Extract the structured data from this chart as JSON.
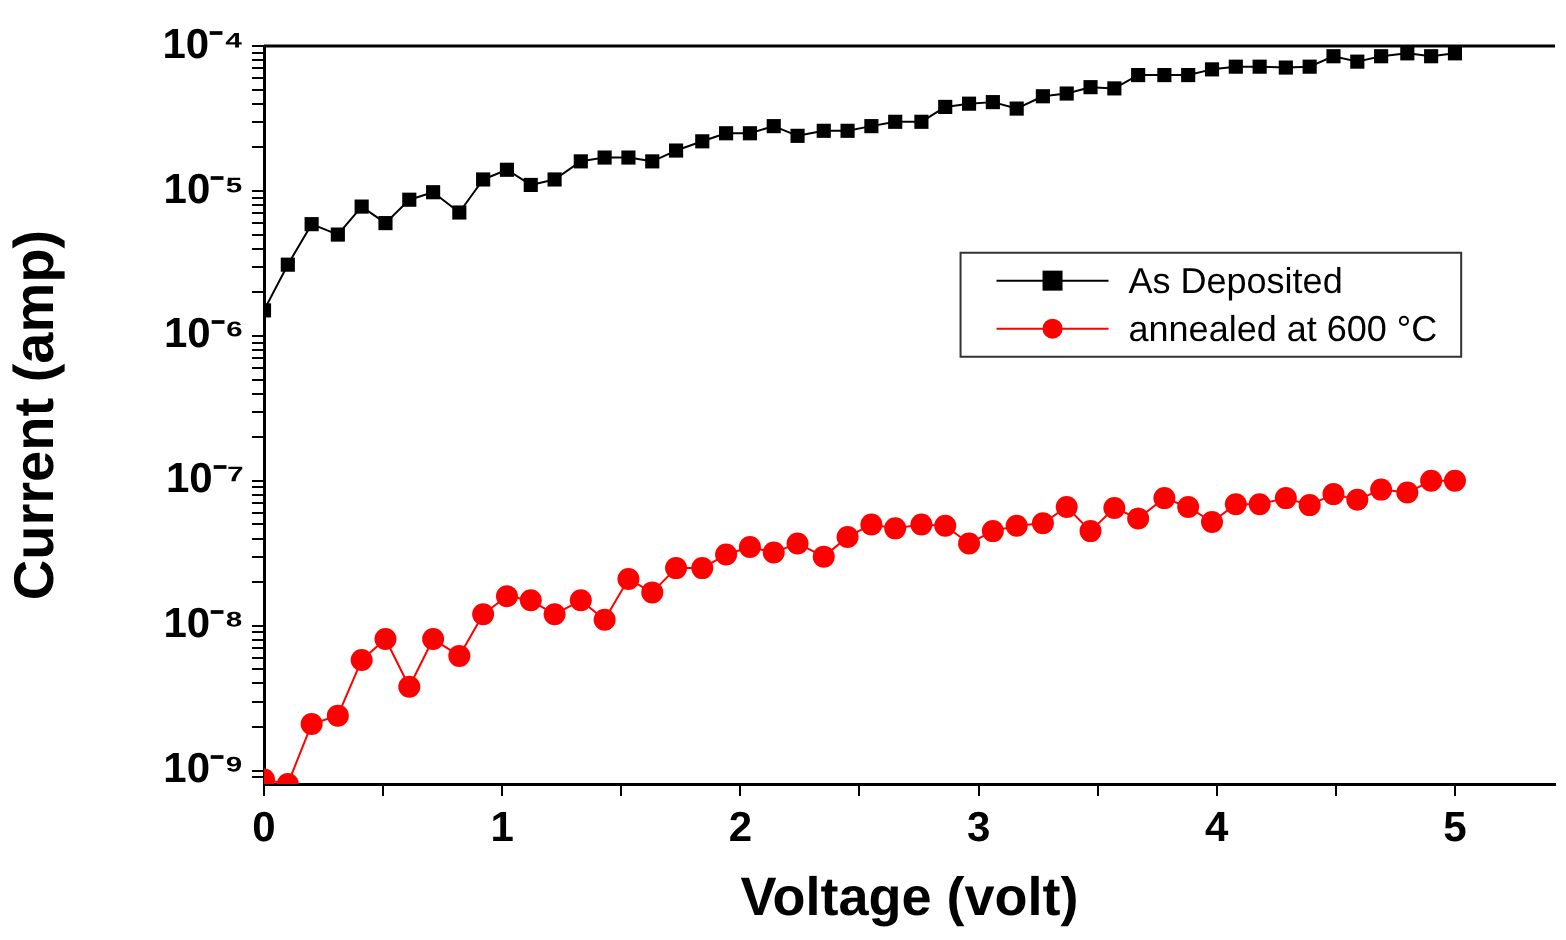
{
  "chart_data": {
    "type": "line",
    "xlabel": "Voltage (volt)",
    "ylabel": "Current (amp)",
    "log": "y",
    "legend": "right",
    "x": [
      0,
      0.1,
      0.2,
      0.31,
      0.41,
      0.51,
      0.61,
      0.71,
      0.82,
      0.92,
      1.02,
      1.12,
      1.22,
      1.33,
      1.43,
      1.53,
      1.63,
      1.73,
      1.84,
      1.94,
      2.04,
      2.14,
      2.24,
      2.35,
      2.45,
      2.55,
      2.65,
      2.76,
      2.86,
      2.96,
      3.06,
      3.16,
      3.27,
      3.37,
      3.47,
      3.57,
      3.67,
      3.78,
      3.88,
      3.98,
      4.08,
      4.18,
      4.29,
      4.39,
      4.49,
      4.59,
      4.69,
      4.8,
      4.9,
      5
    ],
    "series": [
      {
        "name": "As Deposited",
        "color": "#000000",
        "marker": "square",
        "values": [
          1.5e-06,
          3.1e-06,
          5.9e-06,
          5e-06,
          7.8e-06,
          6e-06,
          8.7e-06,
          9.8e-06,
          7.1e-06,
          1.2e-05,
          1.4e-05,
          1.1e-05,
          1.2e-05,
          1.6e-05,
          1.7e-05,
          1.7e-05,
          1.6e-05,
          1.9e-05,
          2.2e-05,
          2.5e-05,
          2.5e-05,
          2.8e-05,
          2.4e-05,
          2.6e-05,
          2.6e-05,
          2.8e-05,
          3e-05,
          3e-05,
          3.8e-05,
          4e-05,
          4.1e-05,
          3.7e-05,
          4.5e-05,
          4.7e-05,
          5.2e-05,
          5.1e-05,
          6.3e-05,
          6.3e-05,
          6.3e-05,
          6.9e-05,
          7.2e-05,
          7.2e-05,
          7.1e-05,
          7.2e-05,
          8.5e-05,
          7.8e-05,
          8.5e-05,
          8.9e-05,
          8.5e-05,
          8.9e-05
        ]
      },
      {
        "name": "annealed at 600 °C",
        "color": "#ff0000",
        "marker": "circle",
        "values": [
          8.7e-10,
          8.1e-10,
          2.1e-09,
          2.4e-09,
          5.8e-09,
          8.1e-09,
          3.8e-09,
          8.1e-09,
          6.2e-09,
          1.2e-08,
          1.6e-08,
          1.5e-08,
          1.2e-08,
          1.5e-08,
          1.1e-08,
          2.1e-08,
          1.7e-08,
          2.5e-08,
          2.5e-08,
          3.1e-08,
          3.5e-08,
          3.2e-08,
          3.7e-08,
          3e-08,
          4.1e-08,
          5e-08,
          4.7e-08,
          5e-08,
          4.9e-08,
          3.7e-08,
          4.5e-08,
          4.9e-08,
          5.1e-08,
          6.6e-08,
          4.5e-08,
          6.5e-08,
          5.5e-08,
          7.6e-08,
          6.6e-08,
          5.2e-08,
          6.9e-08,
          6.9e-08,
          7.6e-08,
          6.8e-08,
          8.1e-08,
          7.4e-08,
          8.7e-08,
          8.3e-08,
          1e-07,
          1e-07
        ]
      }
    ],
    "xlim": [
      0,
      5.42
    ],
    "xticks": [
      0,
      {
        "value": 0.5,
        "label": null
      },
      1,
      {
        "value": 1.5,
        "label": null
      },
      2,
      {
        "value": 2.5,
        "label": null
      },
      3,
      {
        "value": 3.5,
        "label": null
      },
      4,
      {
        "value": 4.5,
        "label": null
      },
      5
    ],
    "ylim": [
      8.1e-10,
      0.0001
    ],
    "yticks": [
      {
        "value": 9e-10,
        "label": null
      },
      {
        "value": 1e-09,
        "label": "10⁻⁹"
      },
      {
        "value": 2e-09,
        "label": null
      },
      {
        "value": 3e-09,
        "label": null
      },
      {
        "value": 4e-09,
        "label": null
      },
      {
        "value": 5e-09,
        "label": null
      },
      {
        "value": 6e-09,
        "label": null
      },
      {
        "value": 7e-09,
        "label": null
      },
      {
        "value": 8e-09,
        "label": null
      },
      {
        "value": 9e-09,
        "label": null
      },
      {
        "value": 1e-08,
        "label": "10⁻⁸"
      },
      {
        "value": 2e-08,
        "label": null
      },
      {
        "value": 3e-08,
        "label": null
      },
      {
        "value": 4e-08,
        "label": null
      },
      {
        "value": 5e-08,
        "label": null
      },
      {
        "value": 6e-08,
        "label": null
      },
      {
        "value": 7e-08,
        "label": null
      },
      {
        "value": 8e-08,
        "label": null
      },
      {
        "value": 9e-08,
        "label": null
      },
      {
        "value": 1e-07,
        "label": "10⁻⁷"
      },
      {
        "value": 2e-07,
        "label": null
      },
      {
        "value": 3e-07,
        "label": null
      },
      {
        "value": 4e-07,
        "label": null
      },
      {
        "value": 5e-07,
        "label": null
      },
      {
        "value": 6e-07,
        "label": null
      },
      {
        "value": 7e-07,
        "label": null
      },
      {
        "value": 8e-07,
        "label": null
      },
      {
        "value": 9e-07,
        "label": null
      },
      {
        "value": 1e-06,
        "label": "10⁻⁶"
      },
      {
        "value": 2e-06,
        "label": null
      },
      {
        "value": 3e-06,
        "label": null
      },
      {
        "value": 4e-06,
        "label": null
      },
      {
        "value": 5e-06,
        "label": null
      },
      {
        "value": 6e-06,
        "label": null
      },
      {
        "value": 7e-06,
        "label": null
      },
      {
        "value": 8e-06,
        "label": null
      },
      {
        "value": 9e-06,
        "label": null
      },
      {
        "value": 1e-05,
        "label": "10⁻⁵"
      },
      {
        "value": 2e-05,
        "label": null
      },
      {
        "value": 3e-05,
        "label": null
      },
      {
        "value": 4e-05,
        "label": null
      },
      {
        "value": 5e-05,
        "label": null
      },
      {
        "value": 6e-05,
        "label": null
      },
      {
        "value": 7e-05,
        "label": null
      },
      {
        "value": 8e-05,
        "label": null
      },
      {
        "value": 9e-05,
        "label": null
      },
      {
        "value": 0.0001,
        "label": "10⁻⁴"
      }
    ]
  }
}
